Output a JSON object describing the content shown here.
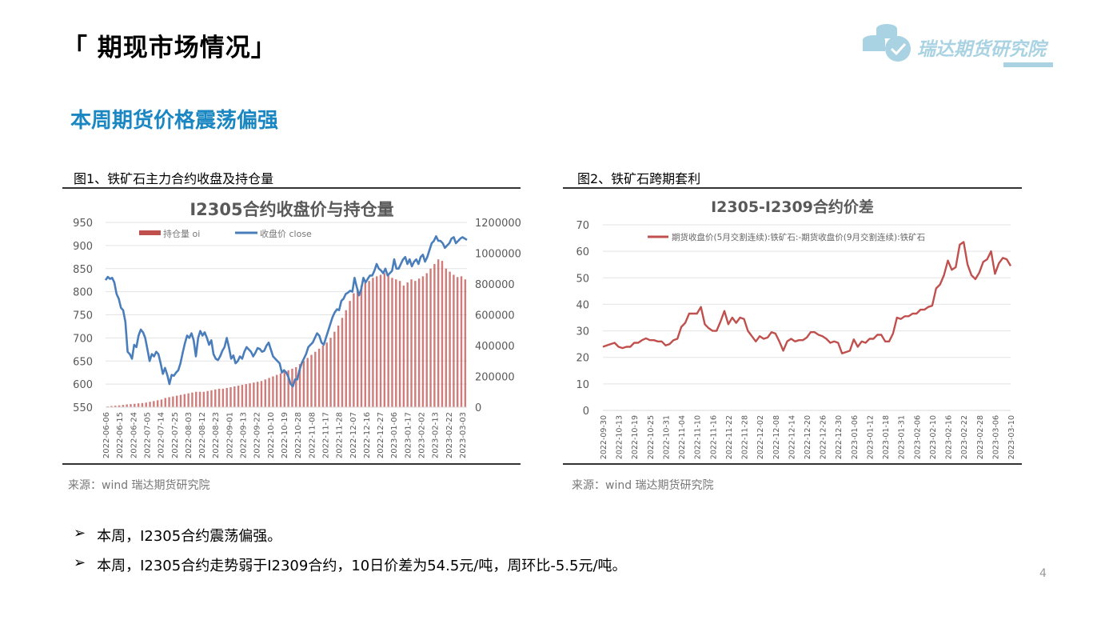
{
  "header": {
    "title": "「 期现市场情况」",
    "logo_text": "瑞达期货研究院"
  },
  "subtitle": "本周期货价格震荡偏强",
  "figure1": {
    "caption": "图1、铁矿石主力合约收盘及持仓量",
    "source": "来源：wind   瑞达期货研究院"
  },
  "figure2": {
    "caption": "图2、铁矿石跨期套利",
    "source": "来源：wind   瑞达期货研究院"
  },
  "bullets": [
    {
      "marker": "➢",
      "text": "本周，I2305合约震荡偏强。"
    },
    {
      "marker": "➢",
      "text": "本周，I2305合约走势弱于I2309合约，10日价差为54.5元/吨，周环比-5.5元/吨。"
    }
  ],
  "page_number": "4",
  "colors": {
    "accent": "#1a87c2",
    "close": "#4a7ebb",
    "oi": "#c0504d",
    "spread": "#c0504d",
    "logo": "#a9d3e3"
  },
  "chart_data": [
    {
      "type": "bar+line",
      "title": "I2305合约收盘价与持仓量",
      "legend": [
        "持仓量 oi",
        "收盘价 close"
      ],
      "legend_placement": "top",
      "y_left": {
        "ticks": [
          "550",
          "600",
          "650",
          "700",
          "750",
          "800",
          "850",
          "900",
          "950"
        ],
        "ylim": [
          550,
          950
        ]
      },
      "y_right": {
        "ticks": [
          "0",
          "200000",
          "400000",
          "600000",
          "800000",
          "1000000",
          "1200000"
        ],
        "ylim": [
          0,
          1200000
        ]
      },
      "x_ticks": [
        "2022-06-06",
        "2022-06-15",
        "2022-06-24",
        "2022-07-05",
        "2022-07-14",
        "2022-07-25",
        "2022-08-03",
        "2022-08-12",
        "2022-08-23",
        "2022-09-01",
        "2022-09-13",
        "2022-09-22",
        "2022-10-10",
        "2022-10-19",
        "2022-10-28",
        "2022-11-08",
        "2022-11-17",
        "2022-11-28",
        "2022-12-07",
        "2022-12-16",
        "2022-12-27",
        "2023-01-06",
        "2023-01-17",
        "2023-02-02",
        "2023-02-13",
        "2023-02-22",
        "2023-03-03"
      ],
      "series": [
        {
          "name": "收盘价 close",
          "values": [
            825,
            832,
            828,
            830,
            820,
            795,
            785,
            765,
            760,
            735,
            670,
            665,
            655,
            685,
            680,
            705,
            718,
            712,
            700,
            675,
            650,
            665,
            660,
            670,
            665,
            645,
            622,
            635,
            620,
            600,
            620,
            618,
            625,
            630,
            645,
            668,
            688,
            705,
            700,
            710,
            695,
            660,
            700,
            715,
            705,
            712,
            700,
            685,
            695,
            665,
            655,
            652,
            660,
            672,
            680,
            700,
            680,
            655,
            662,
            645,
            650,
            660,
            655,
            670,
            680,
            675,
            670,
            660,
            668,
            678,
            676,
            670,
            672,
            683,
            690,
            675,
            660,
            655,
            650,
            645,
            625,
            630,
            625,
            615,
            600,
            595,
            610,
            610,
            630,
            645,
            655,
            665,
            680,
            685,
            690,
            700,
            710,
            705,
            690,
            685,
            700,
            715,
            730,
            745,
            755,
            762,
            760,
            780,
            785,
            795,
            798,
            802,
            800,
            830,
            810,
            792,
            805,
            830,
            820,
            828,
            835,
            835,
            845,
            860,
            850,
            846,
            840,
            850,
            835,
            840,
            845,
            870,
            850,
            850,
            860,
            870,
            875,
            860,
            870,
            855,
            865,
            870,
            860,
            875,
            880,
            865,
            875,
            890,
            905,
            910,
            920,
            910,
            910,
            905,
            895,
            900,
            905,
            915,
            918,
            905,
            910,
            915,
            918,
            915,
            912
          ]
        },
        {
          "name": "持仓量 oi",
          "values": [
            5000,
            8000,
            10000,
            12000,
            15000,
            18000,
            20000,
            22000,
            25000,
            27000,
            30000,
            35000,
            40000,
            45000,
            50000,
            60000,
            65000,
            70000,
            75000,
            80000,
            85000,
            90000,
            95000,
            100000,
            100000,
            100000,
            105000,
            110000,
            115000,
            120000,
            120000,
            125000,
            130000,
            135000,
            140000,
            145000,
            150000,
            155000,
            160000,
            165000,
            170000,
            180000,
            190000,
            200000,
            210000,
            220000,
            230000,
            240000,
            250000,
            260000,
            280000,
            300000,
            320000,
            340000,
            360000,
            380000,
            400000,
            420000,
            450000,
            490000,
            530000,
            580000,
            630000,
            690000,
            740000,
            770000,
            790000,
            810000,
            820000,
            840000,
            850000,
            860000,
            870000,
            860000,
            840000,
            830000,
            820000,
            790000,
            810000,
            830000,
            820000,
            835000,
            850000,
            870000,
            900000,
            930000,
            960000,
            950000,
            900000,
            880000,
            860000,
            845000,
            850000,
            830000
          ]
        }
      ]
    },
    {
      "type": "line",
      "title": "I2305-I2309合约价差",
      "legend": [
        "期货收盘价(5月交割连续):铁矿石:-期货收盘价(9月交割连续):铁矿石"
      ],
      "legend_placement": "top",
      "y": {
        "ticks": [
          "0",
          "10",
          "20",
          "30",
          "40",
          "50",
          "60",
          "70"
        ],
        "ylim": [
          0,
          70
        ]
      },
      "x_ticks": [
        "2022-09-30",
        "2022-10-13",
        "2022-10-19",
        "2022-10-25",
        "2022-10-31",
        "2022-11-04",
        "2022-11-10",
        "2022-11-16",
        "2022-11-22",
        "2022-11-28",
        "2022-12-02",
        "2022-12-08",
        "2022-12-14",
        "2022-12-20",
        "2022-12-26",
        "2022-12-30",
        "2023-01-06",
        "2023-01-12",
        "2023-01-18",
        "2023-01-31",
        "2023-02-06",
        "2023-02-10",
        "2023-02-16",
        "2023-02-22",
        "2023-02-28",
        "2023-03-06",
        "2023-03-10"
      ],
      "series": [
        {
          "name": "期货收盘价(5月交割连续):铁矿石:-期货收盘价(9月交割连续):铁矿石",
          "values": [
            24,
            24.5,
            25,
            25.5,
            24,
            23.5,
            24,
            24,
            25.5,
            25.5,
            26.5,
            27.2,
            26.5,
            26.5,
            26,
            26,
            24.5,
            25,
            26.5,
            27,
            31.5,
            33,
            36.5,
            36.5,
            36.5,
            39,
            32.5,
            31,
            30,
            30,
            33.5,
            37.5,
            32.5,
            35,
            33,
            35,
            34.5,
            30,
            28,
            26,
            28,
            27,
            27.5,
            29.5,
            29,
            26,
            22.5,
            26,
            27,
            26,
            26.5,
            26.5,
            27.5,
            29.5,
            29.5,
            28.5,
            28,
            27,
            25.5,
            26,
            25.5,
            21.5,
            22,
            22.5,
            26.8,
            24,
            26,
            25.5,
            27,
            27,
            28.5,
            28.5,
            26,
            26,
            29,
            35,
            34.5,
            35.5,
            35.5,
            36.5,
            36.5,
            38,
            38,
            39,
            39.5,
            46,
            47.5,
            51,
            56.5,
            53,
            54,
            62.5,
            63.5,
            55,
            51,
            49.5,
            52,
            56,
            57,
            60,
            51.5,
            55.5,
            57.5,
            57,
            54.5
          ]
        }
      ]
    }
  ]
}
